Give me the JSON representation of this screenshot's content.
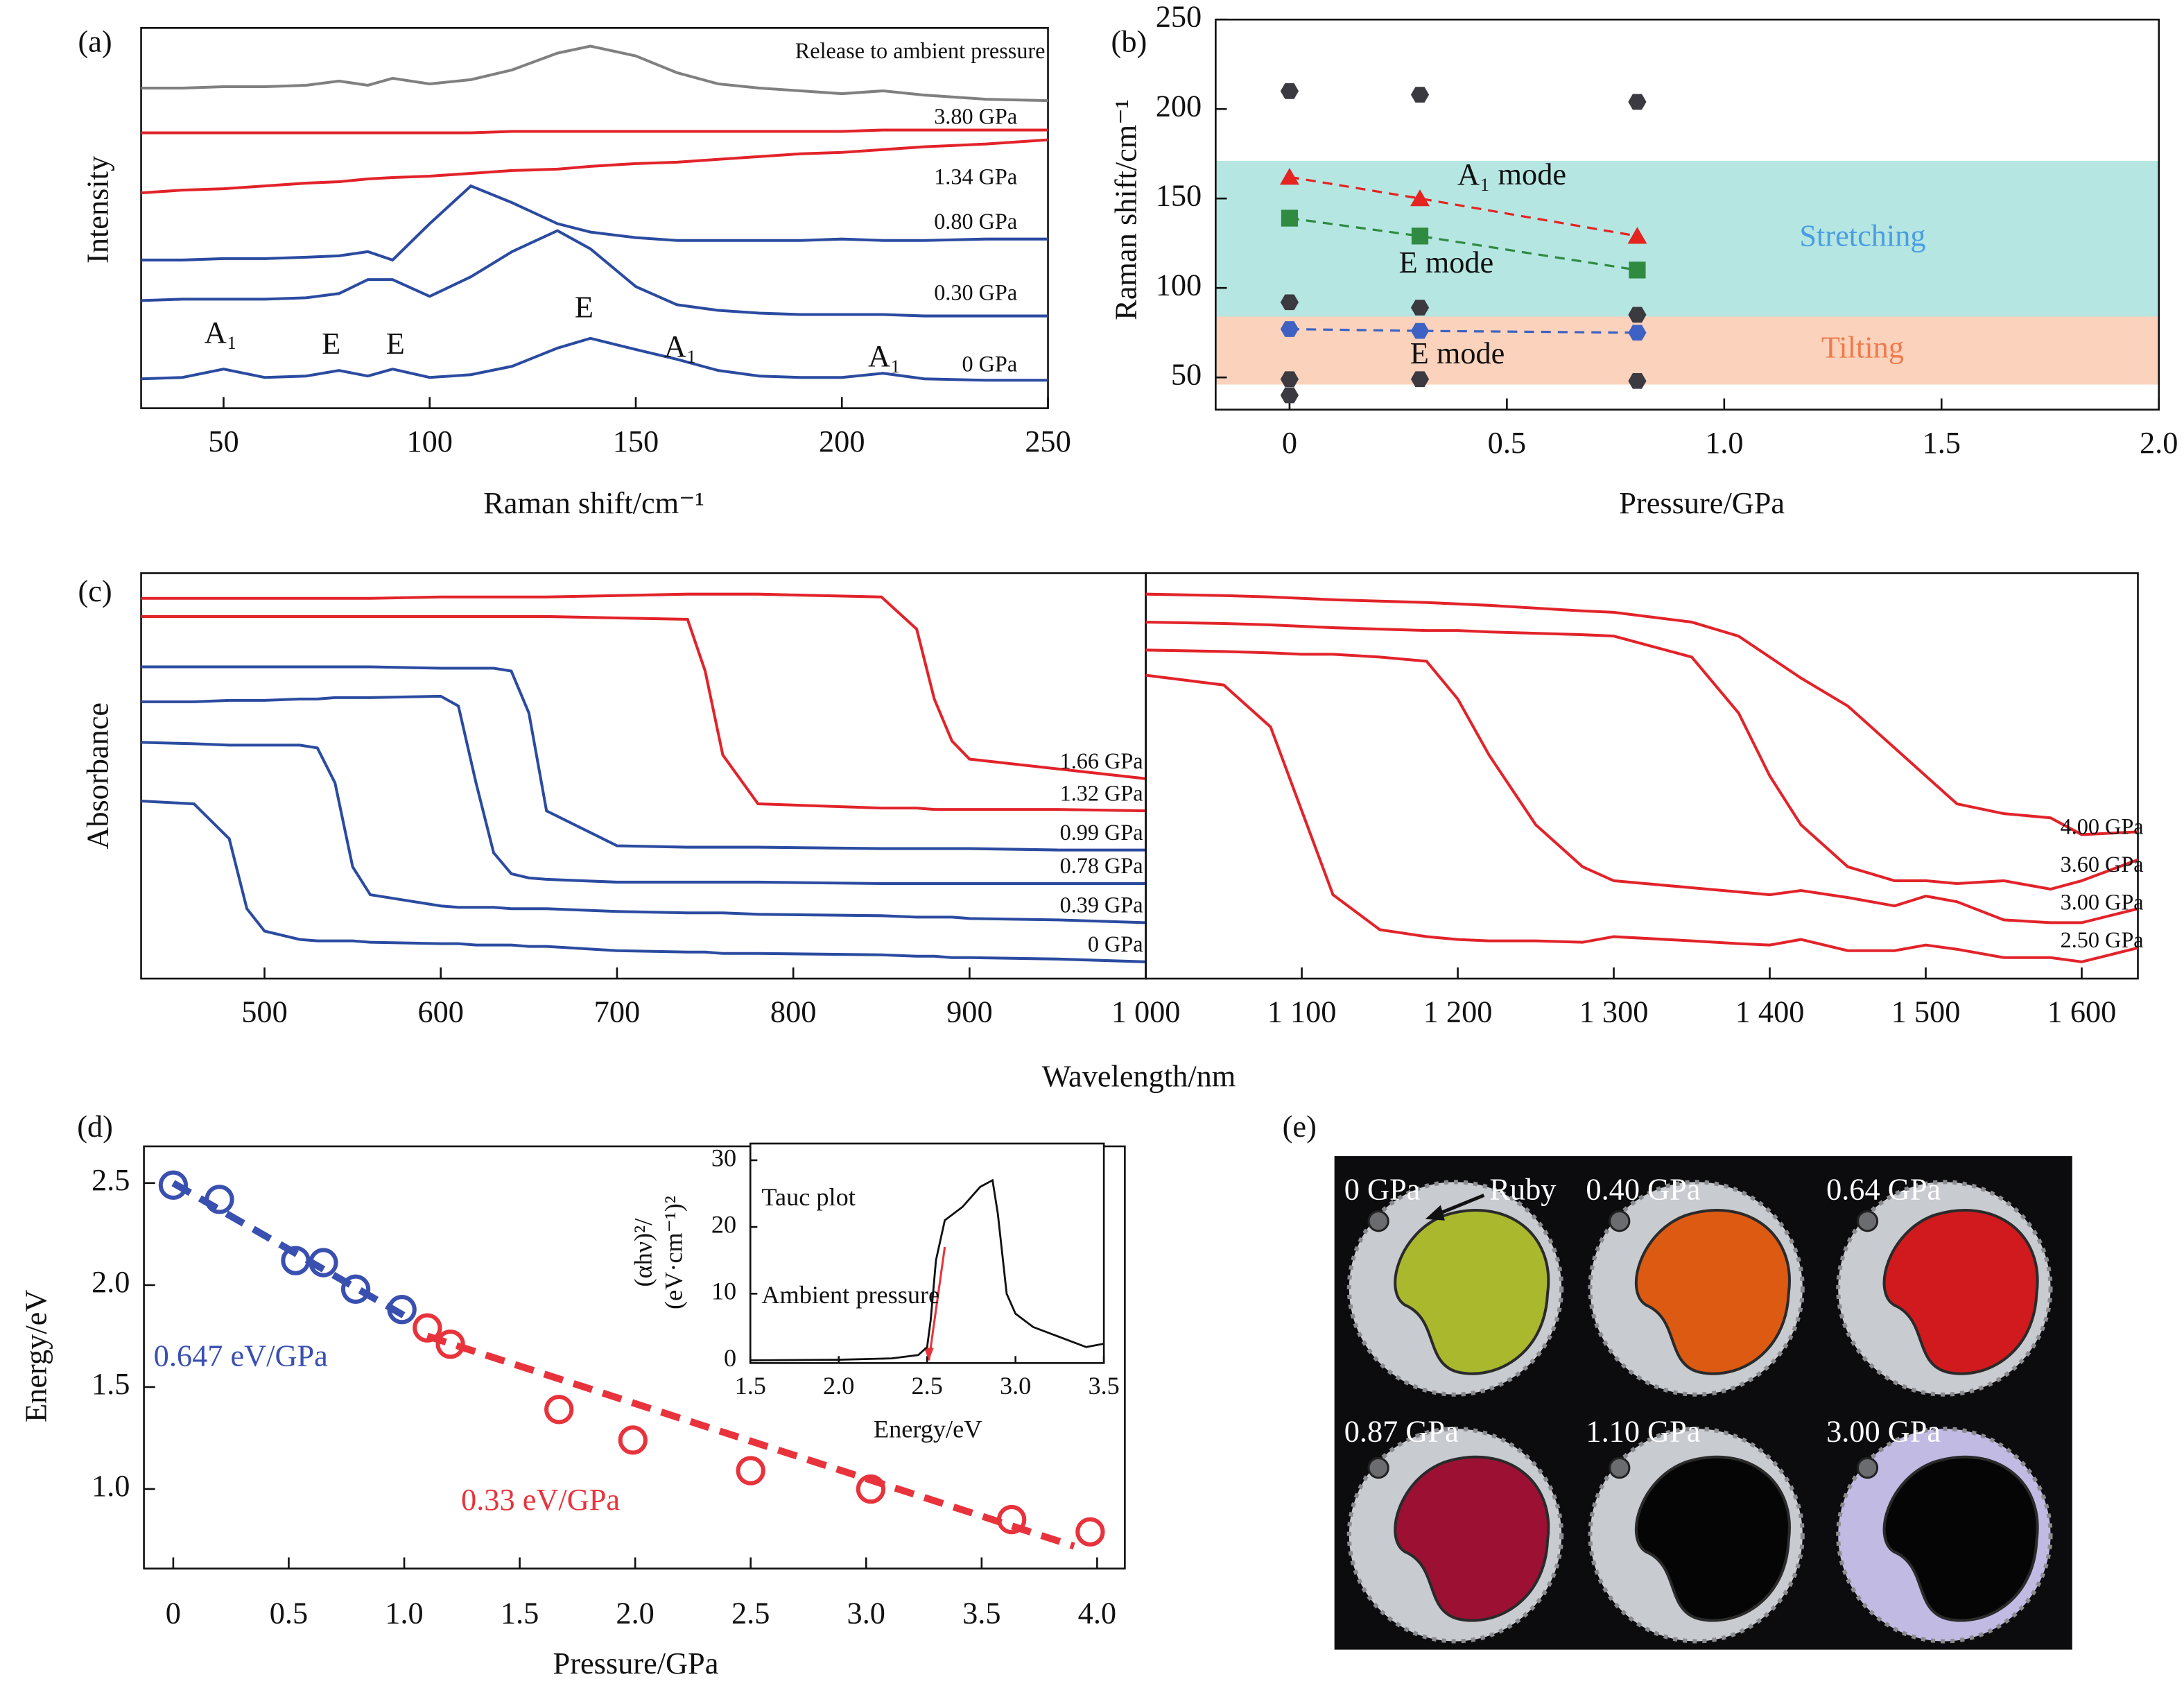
{
  "chart_data": [
    {
      "type": "line",
      "panel_label": "(a)",
      "xlabel": "Raman shift/cm⁻¹",
      "ylabel": "Intensity",
      "xlim": [
        30,
        250
      ],
      "ylim": [
        0,
        272
      ],
      "xticks": [
        50,
        100,
        150,
        200,
        250
      ],
      "x": [
        30,
        40,
        50,
        60,
        70,
        78,
        85,
        91,
        100,
        110,
        120,
        131,
        139,
        150,
        160,
        170,
        180,
        190,
        200,
        210,
        220,
        235,
        250
      ],
      "series": [
        {
          "name": "0 GPa",
          "color": "#2b4ba0",
          "values": [
            21,
            22,
            28,
            22,
            23,
            27,
            23,
            28,
            22,
            24,
            30,
            43,
            50,
            42,
            35,
            27,
            23,
            22,
            22,
            25,
            21,
            20,
            20
          ]
        },
        {
          "name": "0.30 GPa",
          "color": "#2b4ba0",
          "values": [
            77,
            78,
            78,
            78,
            79,
            82,
            92,
            92,
            80,
            94,
            112,
            127,
            114,
            87,
            74,
            70,
            68,
            67,
            67,
            67,
            66,
            66,
            66
          ]
        },
        {
          "name": "0.80 GPa",
          "color": "#2b4ba0",
          "values": [
            106,
            106,
            107,
            107,
            108,
            109,
            112,
            106,
            132,
            159,
            147,
            132,
            126,
            122,
            120,
            120,
            120,
            120,
            121,
            120,
            120,
            121,
            121
          ]
        },
        {
          "name": "1.34 GPa",
          "color": "#e2232a",
          "values": [
            154,
            156,
            157,
            159,
            161,
            162,
            164,
            165,
            166,
            168,
            170,
            171,
            173,
            175,
            176,
            178,
            180,
            182,
            183,
            185,
            187,
            189,
            192
          ]
        },
        {
          "name": "3.80 GPa",
          "color": "#e2232a",
          "values": [
            197,
            197,
            197,
            197,
            197,
            197,
            197,
            197,
            197,
            197,
            198,
            198,
            198,
            198,
            198,
            198,
            198,
            198,
            198,
            199,
            199,
            199,
            199
          ]
        },
        {
          "name": "Release to ambient pressure",
          "color": "#808080",
          "values": [
            229,
            229,
            230,
            230,
            231,
            234,
            231,
            236,
            232,
            235,
            242,
            254,
            259,
            252,
            240,
            232,
            229,
            227,
            225,
            227,
            224,
            221,
            220
          ]
        }
      ],
      "peak_labels": [
        "A₁",
        "E",
        "E",
        "E",
        "A₁",
        "A₁"
      ]
    },
    {
      "type": "scatter",
      "panel_label": "(b)",
      "xlabel": "Pressure/GPa",
      "ylabel": "Raman shift/cm⁻¹",
      "xlim": [
        -0.17,
        2.0
      ],
      "ylim": [
        32,
        250
      ],
      "xticks": [
        0,
        0.5,
        {
          "value": 1,
          "label": "1.0"
        },
        1.5,
        {
          "value": 2,
          "label": "2.0"
        }
      ],
      "yticks": [
        50,
        100,
        150,
        200,
        250
      ],
      "bands": [
        {
          "label": "Stretching",
          "range": [
            84,
            171
          ],
          "color": "#b5e6e2",
          "text_color": "#4a9de0"
        },
        {
          "label": "Tilting",
          "range": [
            46,
            84
          ],
          "color": "#fbd3bd",
          "text_color": "#ee7b4c"
        }
      ],
      "series": [
        {
          "color": "#3a3a40",
          "marker": "hexagon",
          "x": [
            0,
            0.3,
            0.8,
            0,
            0.3,
            0.8,
            0,
            0.3,
            0.8,
            0
          ],
          "values": [
            210,
            208,
            204,
            92,
            89,
            85,
            49,
            49,
            48,
            40
          ]
        },
        {
          "name": "A₁ mode",
          "color": "#e52421",
          "marker": "triangle",
          "dashed": true,
          "x": [
            0,
            0.3,
            0.8
          ],
          "values": [
            162,
            150,
            129
          ]
        },
        {
          "name": "E mode",
          "color": "#2e8b3f",
          "marker": "square",
          "dashed": true,
          "x": [
            0,
            0.3,
            0.8
          ],
          "values": [
            139,
            129,
            110
          ]
        },
        {
          "name": "E mode",
          "color": "#3d62c4",
          "marker": "hexagon",
          "dashed": true,
          "x": [
            0,
            0.3,
            0.8
          ],
          "values": [
            77,
            76,
            75
          ]
        }
      ]
    },
    {
      "type": "line",
      "panel_label": "(c)",
      "xlabel": "Wavelength/nm",
      "ylabel": "Absorbance",
      "xlim": [
        430,
        1000
      ],
      "ylim": [
        0,
        290
      ],
      "xticks": [
        500,
        600,
        700,
        800,
        900
      ],
      "x": [
        430,
        460,
        480,
        490,
        500,
        520,
        530,
        540,
        550,
        560,
        600,
        610,
        620,
        630,
        640,
        650,
        660,
        700,
        740,
        750,
        760,
        780,
        850,
        870,
        880,
        890,
        900,
        950,
        1000
      ],
      "series": [
        {
          "name": "0 GPa",
          "color": "#2b4ba0",
          "values": [
            127,
            125,
            100,
            50,
            34,
            28,
            27,
            27,
            27,
            26,
            25,
            25,
            24,
            24,
            24,
            23,
            23,
            20,
            19,
            19,
            18,
            18,
            17,
            16,
            16,
            15,
            15,
            14,
            12
          ]
        },
        {
          "name": "0.39 GPa",
          "color": "#2b4ba0",
          "values": [
            169,
            168,
            167,
            167,
            167,
            167,
            165,
            140,
            80,
            60,
            52,
            51,
            51,
            51,
            50,
            50,
            50,
            48,
            47,
            47,
            47,
            46,
            45,
            44,
            44,
            44,
            43,
            42,
            40
          ]
        },
        {
          "name": "0.78 GPa",
          "color": "#2b4ba0",
          "values": [
            198,
            198,
            199,
            199,
            199,
            200,
            200,
            201,
            201,
            201,
            202,
            195,
            140,
            90,
            75,
            72,
            71,
            69,
            69,
            69,
            69,
            69,
            68,
            68,
            68,
            68,
            68,
            68,
            68
          ]
        },
        {
          "name": "0.99 GPa",
          "color": "#2b4ba0",
          "values": [
            223,
            223,
            223,
            223,
            223,
            223,
            223,
            223,
            223,
            223,
            222,
            222,
            222,
            222,
            220,
            190,
            120,
            95,
            94,
            94,
            94,
            94,
            93,
            93,
            93,
            93,
            93,
            92,
            92
          ]
        },
        {
          "name": "1.32 GPa",
          "color": "#e2232a",
          "values": [
            259,
            259,
            259,
            259,
            259,
            259,
            259,
            259,
            259,
            259,
            259,
            259,
            259,
            259,
            259,
            259,
            259,
            258,
            257,
            220,
            160,
            125,
            122,
            122,
            121,
            121,
            121,
            121,
            120
          ]
        },
        {
          "name": "1.66 GPa",
          "color": "#e2232a",
          "values": [
            272,
            272,
            272,
            272,
            272,
            272,
            272,
            272,
            272,
            272,
            273,
            273,
            273,
            273,
            273,
            273,
            273,
            274,
            275,
            275,
            275,
            275,
            273,
            250,
            200,
            170,
            157,
            150,
            143
          ]
        }
      ]
    },
    {
      "type": "line",
      "xlim": [
        1000,
        1636
      ],
      "ylim": [
        0,
        290
      ],
      "xticks": [
        {
          "value": 1000,
          "label": "1 000"
        },
        {
          "value": 1100,
          "label": "1 100"
        },
        {
          "value": 1200,
          "label": "1 200"
        },
        {
          "value": 1300,
          "label": "1 300"
        },
        {
          "value": 1400,
          "label": "1 400"
        },
        {
          "value": 1500,
          "label": "1 500"
        },
        {
          "value": 1600,
          "label": "1 600"
        }
      ],
      "x": [
        1000,
        1050,
        1080,
        1100,
        1120,
        1150,
        1180,
        1200,
        1220,
        1250,
        1280,
        1300,
        1350,
        1380,
        1400,
        1420,
        1450,
        1480,
        1500,
        1520,
        1550,
        1580,
        1600,
        1636
      ],
      "series": [
        {
          "name": "2.50 GPa",
          "color": "#e2232a",
          "values": [
            217,
            210,
            180,
            120,
            60,
            35,
            30,
            28,
            27,
            27,
            26,
            30,
            27,
            25,
            24,
            28,
            20,
            20,
            24,
            21,
            15,
            15,
            12,
            22
          ]
        },
        {
          "name": "3.00 GPa",
          "color": "#e2232a",
          "values": [
            235,
            234,
            233,
            232,
            232,
            230,
            227,
            200,
            160,
            110,
            80,
            70,
            65,
            62,
            60,
            63,
            58,
            52,
            59,
            55,
            42,
            40,
            40,
            50
          ]
        },
        {
          "name": "3.60 GPa",
          "color": "#e2232a",
          "values": [
            255,
            254,
            253,
            252,
            251,
            250,
            249,
            249,
            248,
            247,
            246,
            245,
            230,
            190,
            145,
            110,
            80,
            70,
            70,
            68,
            70,
            64,
            70,
            85
          ]
        },
        {
          "name": "4.00 GPa",
          "color": "#e2232a",
          "values": [
            275,
            274,
            273,
            272,
            271,
            270,
            269,
            268,
            267,
            265,
            263,
            262,
            255,
            245,
            230,
            215,
            195,
            165,
            145,
            125,
            118,
            115,
            103,
            105
          ]
        }
      ]
    },
    {
      "type": "scatter",
      "panel_label": "(d)",
      "xlabel": "Pressure/GPa",
      "ylabel": "Energy/eV",
      "xlim": [
        -0.127,
        4.12
      ],
      "ylim": [
        0.61,
        2.68
      ],
      "xticks": [
        0,
        0.5,
        {
          "value": 1,
          "label": "1.0"
        },
        1.5,
        {
          "value": 2,
          "label": "2.0"
        },
        2.5,
        {
          "value": 3,
          "label": "3.0"
        },
        3.5,
        {
          "value": 4,
          "label": "4.0"
        }
      ],
      "yticks": [
        {
          "value": 1,
          "label": "1.0"
        },
        1.5,
        {
          "value": 2,
          "label": "2.0"
        },
        2.5
      ],
      "series": [
        {
          "label": "0.647 eV/GPa",
          "color": "#3a50b0",
          "marker": "circle",
          "x": [
            0,
            0.2,
            0.53,
            0.65,
            0.79,
            0.99
          ],
          "values": [
            2.49,
            2.42,
            2.12,
            2.11,
            1.98,
            1.88
          ]
        },
        {
          "label": "0.33 eV/GPa",
          "color": "#e8323c",
          "marker": "circle",
          "x": [
            1.1,
            1.2,
            1.67,
            1.99,
            2.5,
            3.02,
            3.63,
            3.97
          ],
          "values": [
            1.79,
            1.71,
            1.39,
            1.24,
            1.09,
            1.0,
            0.85,
            0.79
          ]
        }
      ],
      "fits": [
        {
          "color": "#3a50b0",
          "x": [
            0,
            1.0
          ],
          "values": [
            2.5,
            1.85
          ]
        },
        {
          "color": "#e8323c",
          "x": [
            1.1,
            3.9
          ],
          "values": [
            1.75,
            0.72
          ]
        }
      ]
    },
    {
      "type": "line",
      "xlabel": "Energy/eV",
      "ylabel": [
        "(αhν)²/",
        "(eV·cm⁻¹)²"
      ],
      "xlim": [
        1.5,
        3.5
      ],
      "ylim": [
        -0.4,
        32.5
      ],
      "xticks": [
        1.5,
        {
          "value": 2,
          "label": "2.0"
        },
        2.5,
        {
          "value": 3,
          "label": "3.0"
        },
        3.5
      ],
      "yticks": [
        0,
        10,
        20,
        30
      ],
      "x": [
        1.5,
        2.0,
        2.3,
        2.45,
        2.5,
        2.52,
        2.55,
        2.6,
        2.7,
        2.8,
        2.87,
        2.9,
        2.95,
        3.0,
        3.1,
        3.2,
        3.3,
        3.4,
        3.5
      ],
      "series": [
        {
          "color": "#111111",
          "values": [
            0,
            0.1,
            0.3,
            0.8,
            2,
            6,
            15,
            21,
            23,
            26,
            27,
            22,
            10,
            7,
            5,
            4,
            3,
            2,
            2.5
          ]
        }
      ],
      "fits": [
        {
          "color": "#e8323c",
          "x": [
            2.51,
            2.6
          ],
          "values": [
            0,
            17
          ]
        }
      ],
      "annotations": [
        "Tauc plot",
        "Ambient pressure"
      ]
    }
  ],
  "panel_e": {
    "label": "(e)",
    "annotation": "Ruby",
    "images": [
      {
        "label": "0 GPa",
        "color": "#a9b82c"
      },
      {
        "label": "0.40 GPa",
        "color": "#dc5a12"
      },
      {
        "label": "0.64 GPa",
        "color": "#d01a1e"
      },
      {
        "label": "0.87 GPa",
        "color": "#9c1034"
      },
      {
        "label": "1.10 GPa",
        "color": "#050505"
      },
      {
        "label": "3.00 GPa",
        "color": "#050505"
      }
    ]
  }
}
